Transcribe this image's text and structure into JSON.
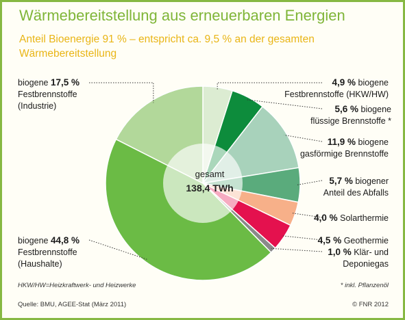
{
  "title": "Wärmebereitstellung aus erneuerbaren Energien",
  "subtitle": "Anteil Bioenergie 91 % – entspricht ca. 9,5 % an der gesamten Wärmebereitstellung",
  "center": {
    "label": "gesamt",
    "value": "138,4 TWh"
  },
  "footnotes": {
    "abbrev": "HKW/HW=Heizkraftwerk- und Heizwerke",
    "star": "* inkl. Pflanzenöl",
    "source": "Quelle: BMU, AGEE-Stat (März 2011)",
    "copyright": "© FNR 2012"
  },
  "labels": {
    "l0": {
      "pct": "17,5 %",
      "pre": "biogene",
      "lines": [
        "Festbrennstoffe",
        "(Industrie)"
      ]
    },
    "l1": {
      "pct": "44,8 %",
      "pre": "biogene",
      "lines": [
        "Festbrennstoffe",
        "(Haushalte)"
      ]
    },
    "r0": {
      "pct": "4,9 %",
      "post": "biogene",
      "lines": [
        "Festbrennstoffe (HKW/HW)"
      ]
    },
    "r1": {
      "pct": "5,6 %",
      "post": "biogene",
      "lines": [
        "flüssige Brennstoffe *"
      ]
    },
    "r2": {
      "pct": "11,9 %",
      "post": "biogene",
      "lines": [
        "gasförmige Brennstoffe"
      ]
    },
    "r3": {
      "pct": "5,7 %",
      "post": "biogener",
      "lines": [
        "Anteil des Abfalls"
      ]
    },
    "r4": {
      "pct": "4,0 %",
      "post": "Solarthermie",
      "lines": []
    },
    "r5": {
      "pct": "4,5 %",
      "post": "Geothermie",
      "lines": []
    },
    "r6": {
      "pct": "1,0 %",
      "post": "Klär- und",
      "lines": [
        "Deponiegas"
      ]
    }
  },
  "chart_data": {
    "type": "pie",
    "title": "Wärmebereitstellung aus erneuerbaren Energien",
    "total": "138,4 TWh",
    "unit": "%",
    "slices": [
      {
        "name": "biogene Festbrennstoffe (HKW/HW)",
        "value": 4.9,
        "color": "#dcecd2"
      },
      {
        "name": "biogene flüssige Brennstoffe",
        "value": 5.6,
        "color": "#0d8c3c"
      },
      {
        "name": "biogene gasförmige Brennstoffe",
        "value": 11.9,
        "color": "#a8d2bb"
      },
      {
        "name": "biogener Anteil des Abfalls",
        "value": 5.7,
        "color": "#5aab7c"
      },
      {
        "name": "Solarthermie",
        "value": 4.0,
        "color": "#f7b089"
      },
      {
        "name": "Geothermie",
        "value": 4.5,
        "color": "#e4114e"
      },
      {
        "name": "Klär- und Deponiegas",
        "value": 1.0,
        "color": "#8a8a8a"
      },
      {
        "name": "biogene Festbrennstoffe (Haushalte)",
        "value": 44.8,
        "color": "#6bbb45"
      },
      {
        "name": "biogene Festbrennstoffe (Industrie)",
        "value": 17.5,
        "color": "#b2d89a"
      }
    ]
  }
}
